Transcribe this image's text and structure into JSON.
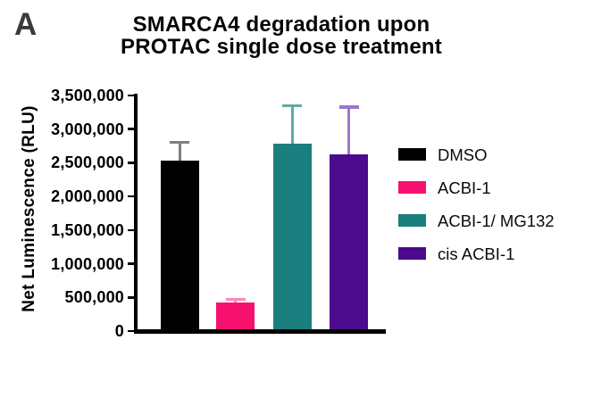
{
  "panel_label": "A",
  "title": {
    "line1": "SMARCA4 degradation upon",
    "line2": "PROTAC single dose treatment"
  },
  "y_axis": {
    "label": "Net Luminescence (RLU)"
  },
  "legend": {
    "items": [
      {
        "label": "DMSO",
        "color": "#000000"
      },
      {
        "label": "ACBI-1",
        "color": "#F7116E"
      },
      {
        "label": "ACBI-1/ MG132",
        "color": "#1A7F7E"
      },
      {
        "label": "cis ACBI-1",
        "color": "#4B0B8C"
      }
    ]
  },
  "chart_data": {
    "type": "bar",
    "title": "SMARCA4 degradation upon PROTAC single dose treatment",
    "xlabel": "",
    "ylabel": "Net Luminescence (RLU)",
    "ylim": [
      0,
      3500000
    ],
    "grid": false,
    "legend_position": "right",
    "categories": [
      "DMSO",
      "ACBI-1",
      "ACBI-1/ MG132",
      "cis ACBI-1"
    ],
    "values": [
      2530000,
      420000,
      2790000,
      2630000
    ],
    "error_bar_tops": [
      2830000,
      490000,
      3370000,
      3350000
    ],
    "bar_colors": [
      "#000000",
      "#F7116E",
      "#1A7F7E",
      "#4B0B8C"
    ],
    "error_bar_colors": [
      "#7F7F7F",
      "#FF85B5",
      "#5FA9A8",
      "#9C77CB"
    ],
    "y_ticks": [
      {
        "value": 0,
        "label": "0"
      },
      {
        "value": 500000,
        "label": "500,000"
      },
      {
        "value": 1000000,
        "label": "1,000,000"
      },
      {
        "value": 1500000,
        "label": "1,500,000"
      },
      {
        "value": 2000000,
        "label": "2,000,000"
      },
      {
        "value": 2500000,
        "label": "2,500,000"
      },
      {
        "value": 3000000,
        "label": "3,000,000"
      },
      {
        "value": 3500000,
        "label": "3,500,000"
      }
    ]
  }
}
